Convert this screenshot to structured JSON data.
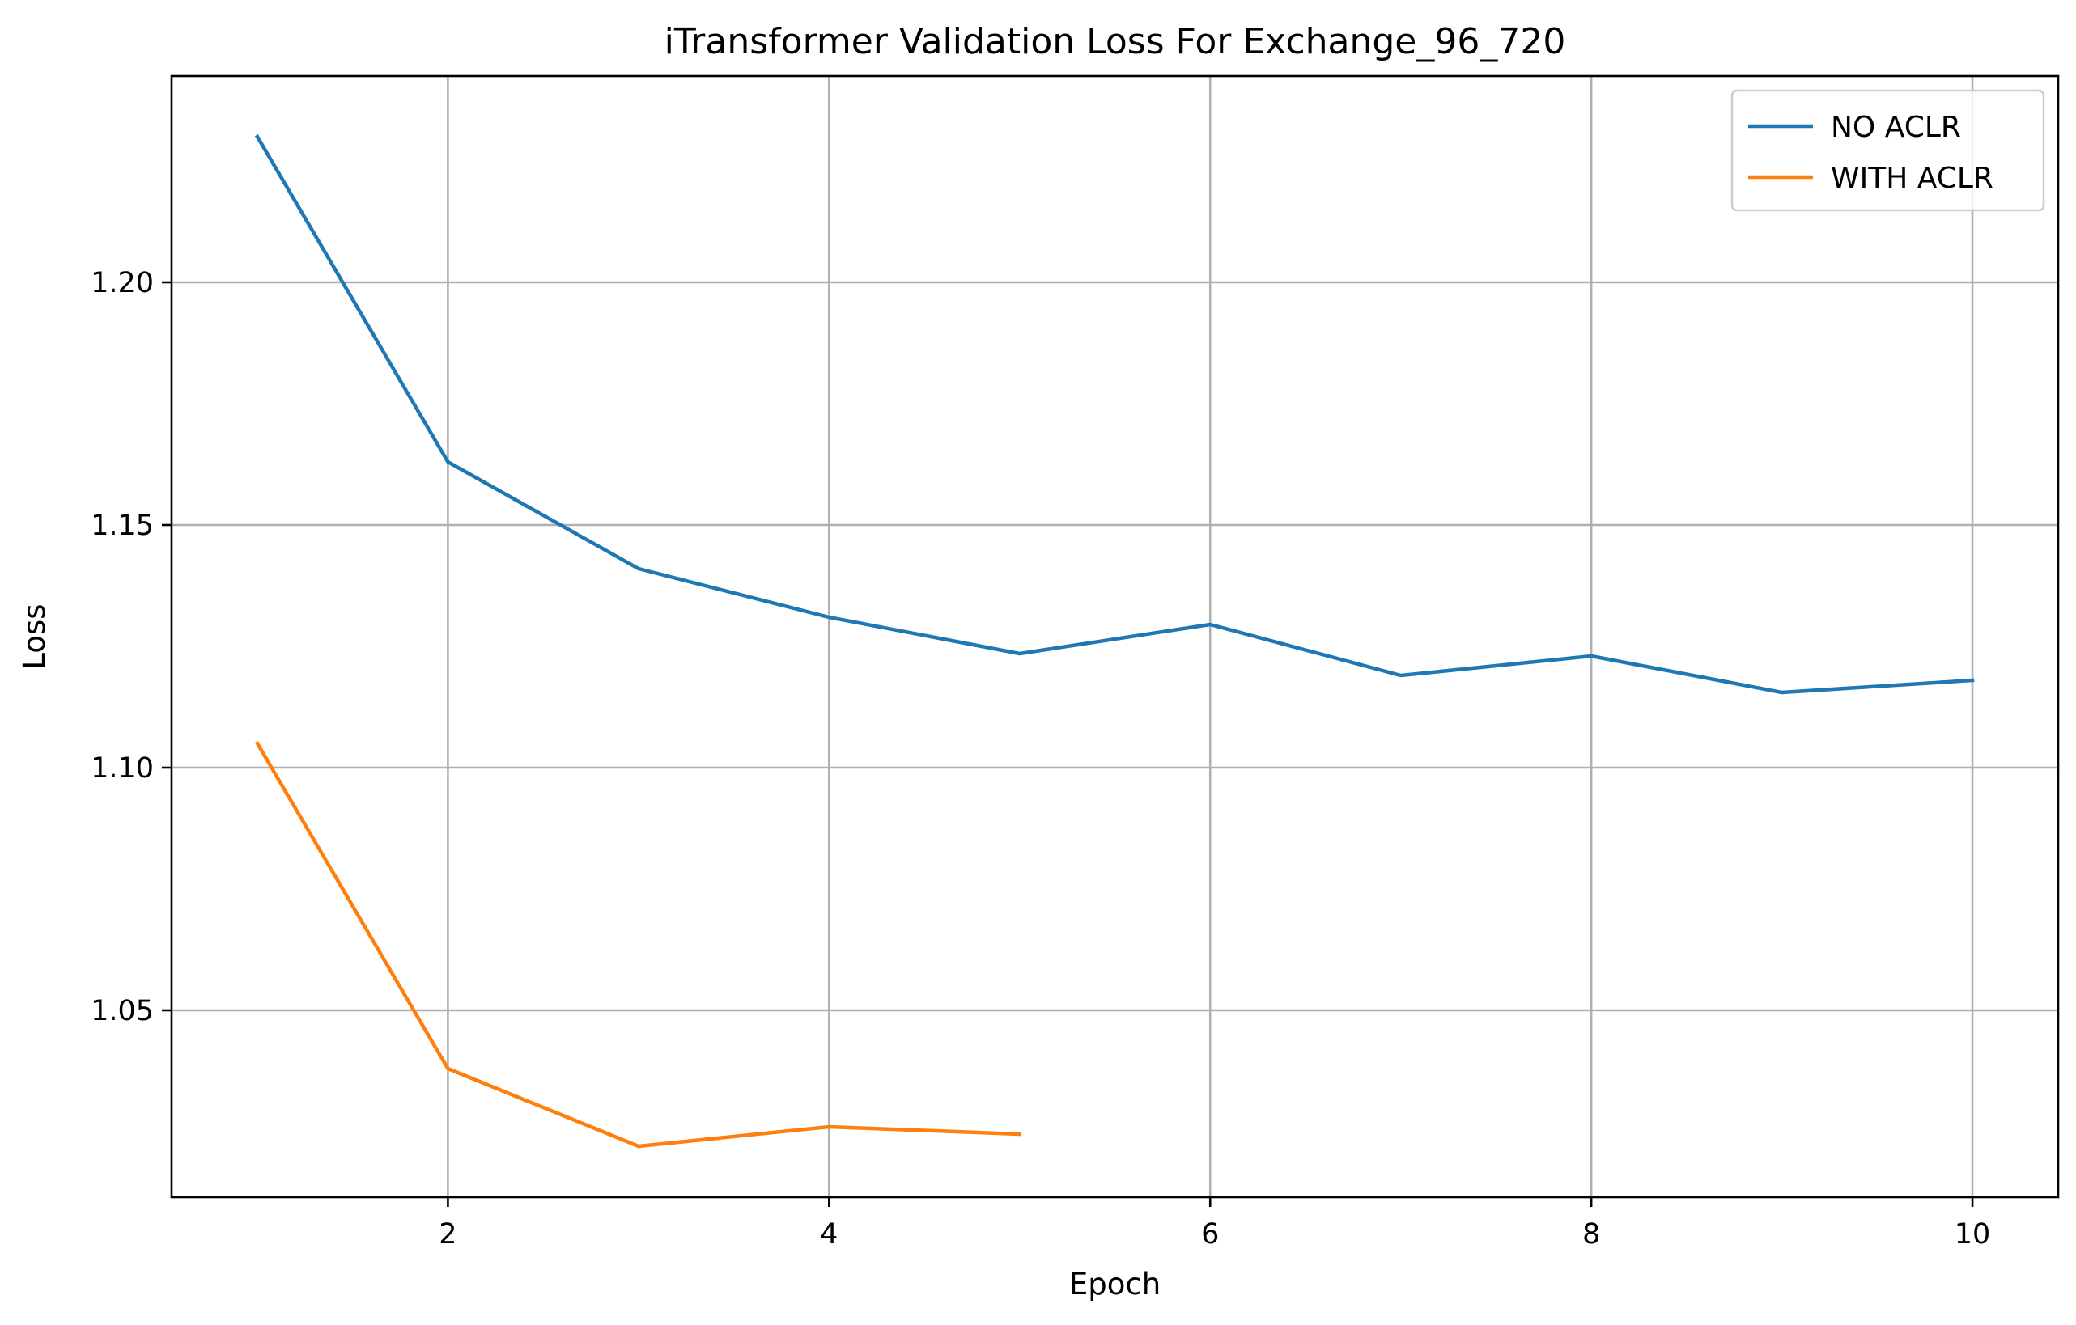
{
  "chart_data": {
    "type": "line",
    "title": "iTransformer Validation Loss For Exchange_96_720",
    "xlabel": "Epoch",
    "ylabel": "Loss",
    "xlim": [
      0.55,
      10.45
    ],
    "ylim": [
      1.0115,
      1.2425
    ],
    "xticks": [
      2,
      4,
      6,
      8,
      10
    ],
    "xtick_labels": [
      "2",
      "4",
      "6",
      "8",
      "10"
    ],
    "yticks": [
      1.05,
      1.1,
      1.15,
      1.2
    ],
    "ytick_labels": [
      "1.05",
      "1.10",
      "1.15",
      "1.20"
    ],
    "grid": true,
    "legend_position": "top-right",
    "series": [
      {
        "name": "NO ACLR",
        "color": "#1f77b4",
        "x": [
          1,
          2,
          3,
          4,
          5,
          6,
          7,
          8,
          9,
          10
        ],
        "y": [
          1.23,
          1.163,
          1.141,
          1.131,
          1.1235,
          1.1295,
          1.119,
          1.123,
          1.1155,
          1.118
        ]
      },
      {
        "name": "WITH ACLR",
        "color": "#ff7f0e",
        "x": [
          1,
          2,
          3,
          4,
          5
        ],
        "y": [
          1.105,
          1.038,
          1.022,
          1.026,
          1.0245
        ]
      }
    ]
  }
}
